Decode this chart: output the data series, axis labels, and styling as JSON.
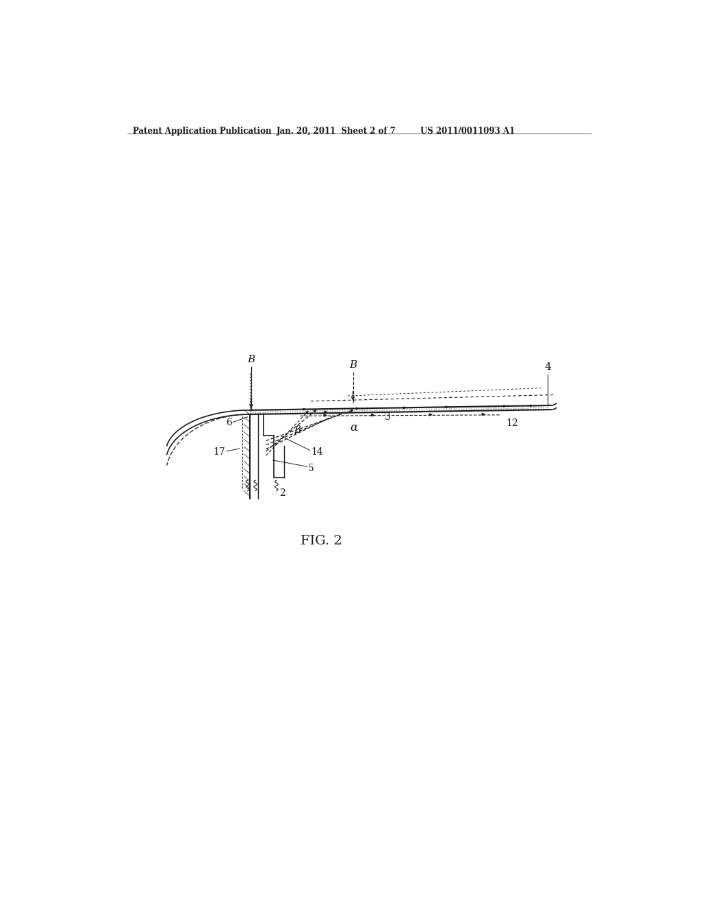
{
  "bg_color": "#ffffff",
  "lc": "#1a1a1a",
  "header_left": "Patent Application Publication",
  "header_center": "Jan. 20, 2011  Sheet 2 of 7",
  "header_right": "US 2011/0011093 A1",
  "fig_label": "FIG. 2",
  "labels": {
    "B_left": "B",
    "B_right": "B",
    "4": "4",
    "3": "3",
    "12": "12",
    "6": "6",
    "alpha": "α",
    "beta": "β",
    "17": "17",
    "14": "14",
    "5": "5",
    "2": "2"
  }
}
